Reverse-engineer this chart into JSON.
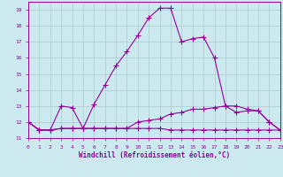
{
  "xlabel": "Windchill (Refroidissement éolien,°C)",
  "ylabel": "",
  "background_color": "#cce9f0",
  "grid_color": "#aacccc",
  "line_color": "#990099",
  "spine_color": "#7777aa",
  "x_values": [
    0,
    1,
    2,
    3,
    4,
    5,
    6,
    7,
    8,
    9,
    10,
    11,
    12,
    13,
    14,
    15,
    16,
    17,
    18,
    19,
    20,
    21,
    22,
    23
  ],
  "series1": [
    12.0,
    11.5,
    11.5,
    11.6,
    11.6,
    11.6,
    11.6,
    11.6,
    11.6,
    11.6,
    11.6,
    11.6,
    11.6,
    11.5,
    11.5,
    11.5,
    11.5,
    11.5,
    11.5,
    11.5,
    11.5,
    11.5,
    11.5,
    11.5
  ],
  "series2": [
    12.0,
    11.5,
    11.5,
    13.0,
    12.9,
    11.6,
    13.1,
    14.3,
    15.5,
    16.4,
    17.4,
    18.5,
    19.1,
    19.1,
    17.0,
    17.2,
    17.3,
    16.0,
    13.0,
    12.6,
    12.7,
    12.7,
    12.0,
    11.5
  ],
  "series3": [
    12.0,
    11.5,
    11.5,
    11.6,
    11.6,
    11.6,
    11.6,
    11.6,
    11.6,
    11.6,
    12.0,
    12.1,
    12.2,
    12.5,
    12.6,
    12.8,
    12.8,
    12.9,
    13.0,
    13.0,
    12.8,
    12.7,
    12.0,
    11.5
  ],
  "xlim": [
    0,
    23
  ],
  "ylim": [
    11.0,
    19.5
  ],
  "yticks": [
    11,
    12,
    13,
    14,
    15,
    16,
    17,
    18,
    19
  ],
  "xticks": [
    0,
    1,
    2,
    3,
    4,
    5,
    6,
    7,
    8,
    9,
    10,
    11,
    12,
    13,
    14,
    15,
    16,
    17,
    18,
    19,
    20,
    21,
    22,
    23
  ],
  "marker": "+",
  "markersize": 4,
  "linewidth": 0.8
}
